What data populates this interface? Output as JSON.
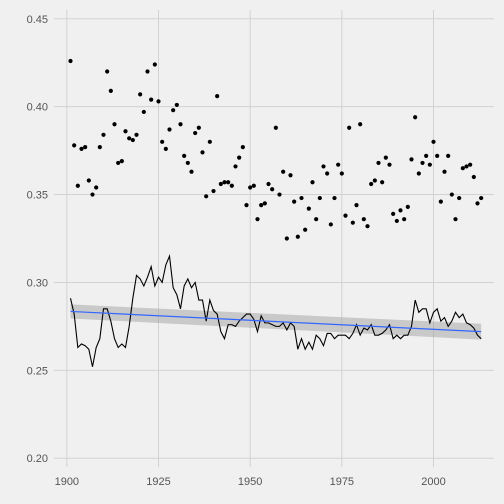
{
  "chart_data": {
    "type": "scatter",
    "title": "",
    "xlabel": "",
    "ylabel": "",
    "xlim": [
      1896.5,
      2016.5
    ],
    "ylim": [
      0.195,
      0.455
    ],
    "x_ticks": [
      1900,
      1925,
      1950,
      1975,
      2000
    ],
    "x_tick_labels": [
      "1900",
      "1925",
      "1950",
      "1975",
      "2000"
    ],
    "y_ticks": [
      0.2,
      0.25,
      0.3,
      0.35,
      0.4,
      0.45
    ],
    "y_tick_labels": [
      "0.20",
      "0.25",
      "0.30",
      "0.35",
      "0.40",
      "0.45"
    ],
    "grid": true,
    "legend": "none",
    "colors": {
      "background": "#f0f0f0",
      "grid": "#d2d2d2",
      "points": "#000000",
      "line": "#000000",
      "trend": "#3366ff",
      "ribbon": "#999999"
    },
    "series": [
      {
        "type": "scatter",
        "x": [
          1901,
          1902,
          1903,
          1904,
          1905,
          1906,
          1907,
          1908,
          1909,
          1910,
          1911,
          1912,
          1913,
          1914,
          1915,
          1916,
          1917,
          1918,
          1919,
          1920,
          1921,
          1922,
          1923,
          1924,
          1925,
          1926,
          1927,
          1928,
          1929,
          1930,
          1931,
          1932,
          1933,
          1934,
          1935,
          1936,
          1937,
          1938,
          1939,
          1940,
          1941,
          1942,
          1943,
          1944,
          1945,
          1946,
          1947,
          1948,
          1949,
          1950,
          1951,
          1952,
          1953,
          1954,
          1955,
          1956,
          1957,
          1958,
          1959,
          1960,
          1961,
          1962,
          1963,
          1964,
          1965,
          1966,
          1967,
          1968,
          1969,
          1970,
          1971,
          1972,
          1973,
          1974,
          1975,
          1976,
          1977,
          1978,
          1979,
          1980,
          1981,
          1982,
          1983,
          1984,
          1985,
          1986,
          1987,
          1988,
          1989,
          1990,
          1991,
          1992,
          1993,
          1994,
          1995,
          1996,
          1997,
          1998,
          1999,
          2000,
          2001,
          2002,
          2003,
          2004,
          2005,
          2006,
          2007,
          2008,
          2009,
          2010,
          2011,
          2012,
          2013
        ],
        "y": [
          0.426,
          0.378,
          0.355,
          0.376,
          0.377,
          0.358,
          0.35,
          0.354,
          0.377,
          0.384,
          0.42,
          0.409,
          0.39,
          0.368,
          0.369,
          0.386,
          0.382,
          0.381,
          0.384,
          0.407,
          0.397,
          0.42,
          0.404,
          0.424,
          0.403,
          0.38,
          0.376,
          0.387,
          0.398,
          0.401,
          0.39,
          0.372,
          0.368,
          0.363,
          0.385,
          0.388,
          0.374,
          0.349,
          0.38,
          0.352,
          0.406,
          0.356,
          0.357,
          0.357,
          0.355,
          0.366,
          0.371,
          0.377,
          0.344,
          0.354,
          0.355,
          0.336,
          0.344,
          0.345,
          0.356,
          0.353,
          0.388,
          0.35,
          0.363,
          0.325,
          0.361,
          0.346,
          0.326,
          0.348,
          0.33,
          0.342,
          0.357,
          0.336,
          0.348,
          0.366,
          0.362,
          0.333,
          0.348,
          0.367,
          0.362,
          0.338,
          0.388,
          0.334,
          0.344,
          0.39,
          0.336,
          0.332,
          0.356,
          0.358,
          0.368,
          0.357,
          0.371,
          0.367,
          0.339,
          0.335,
          0.341,
          0.336,
          0.343,
          0.37,
          0.394,
          0.362,
          0.368,
          0.372,
          0.367,
          0.38,
          0.372,
          0.346,
          0.363,
          0.372,
          0.35,
          0.336,
          0.348,
          0.365,
          0.366,
          0.367,
          0.36,
          0.345,
          0.348
        ]
      },
      {
        "type": "line",
        "x": [
          1901,
          1902,
          1903,
          1904,
          1905,
          1906,
          1907,
          1908,
          1909,
          1910,
          1911,
          1912,
          1913,
          1914,
          1915,
          1916,
          1917,
          1918,
          1919,
          1920,
          1921,
          1922,
          1923,
          1924,
          1925,
          1926,
          1927,
          1928,
          1929,
          1930,
          1931,
          1932,
          1933,
          1934,
          1935,
          1936,
          1937,
          1938,
          1939,
          1940,
          1941,
          1942,
          1943,
          1944,
          1945,
          1946,
          1947,
          1948,
          1949,
          1950,
          1951,
          1952,
          1953,
          1954,
          1955,
          1956,
          1957,
          1958,
          1959,
          1960,
          1961,
          1962,
          1963,
          1964,
          1965,
          1966,
          1967,
          1968,
          1969,
          1970,
          1971,
          1972,
          1973,
          1974,
          1975,
          1976,
          1977,
          1978,
          1979,
          1980,
          1981,
          1982,
          1983,
          1984,
          1985,
          1986,
          1987,
          1988,
          1989,
          1990,
          1991,
          1992,
          1993,
          1994,
          1995,
          1996,
          1997,
          1998,
          1999,
          2000,
          2001,
          2002,
          2003,
          2004,
          2005,
          2006,
          2007,
          2008,
          2009,
          2010,
          2011,
          2012,
          2013
        ],
        "y": [
          0.291,
          0.282,
          0.263,
          0.265,
          0.264,
          0.262,
          0.252,
          0.263,
          0.268,
          0.285,
          0.285,
          0.278,
          0.268,
          0.263,
          0.265,
          0.263,
          0.275,
          0.291,
          0.304,
          0.302,
          0.298,
          0.303,
          0.309,
          0.298,
          0.303,
          0.3,
          0.31,
          0.315,
          0.297,
          0.293,
          0.285,
          0.298,
          0.302,
          0.297,
          0.3,
          0.29,
          0.29,
          0.278,
          0.29,
          0.284,
          0.282,
          0.272,
          0.268,
          0.276,
          0.276,
          0.275,
          0.278,
          0.28,
          0.282,
          0.282,
          0.279,
          0.272,
          0.281,
          0.277,
          0.277,
          0.276,
          0.275,
          0.275,
          0.277,
          0.273,
          0.277,
          0.275,
          0.262,
          0.268,
          0.262,
          0.266,
          0.262,
          0.27,
          0.268,
          0.264,
          0.271,
          0.271,
          0.268,
          0.27,
          0.27,
          0.27,
          0.268,
          0.271,
          0.276,
          0.27,
          0.274,
          0.273,
          0.276,
          0.27,
          0.27,
          0.271,
          0.273,
          0.276,
          0.268,
          0.27,
          0.268,
          0.27,
          0.27,
          0.275,
          0.29,
          0.283,
          0.285,
          0.285,
          0.277,
          0.283,
          0.285,
          0.278,
          0.28,
          0.275,
          0.278,
          0.283,
          0.28,
          0.282,
          0.277,
          0.276,
          0.274,
          0.27,
          0.268
        ]
      },
      {
        "type": "trend",
        "x": [
          1901,
          2013
        ],
        "y": [
          0.2835,
          0.272
        ],
        "ci_halfwidth": [
          0.004,
          0.0045
        ]
      }
    ]
  }
}
